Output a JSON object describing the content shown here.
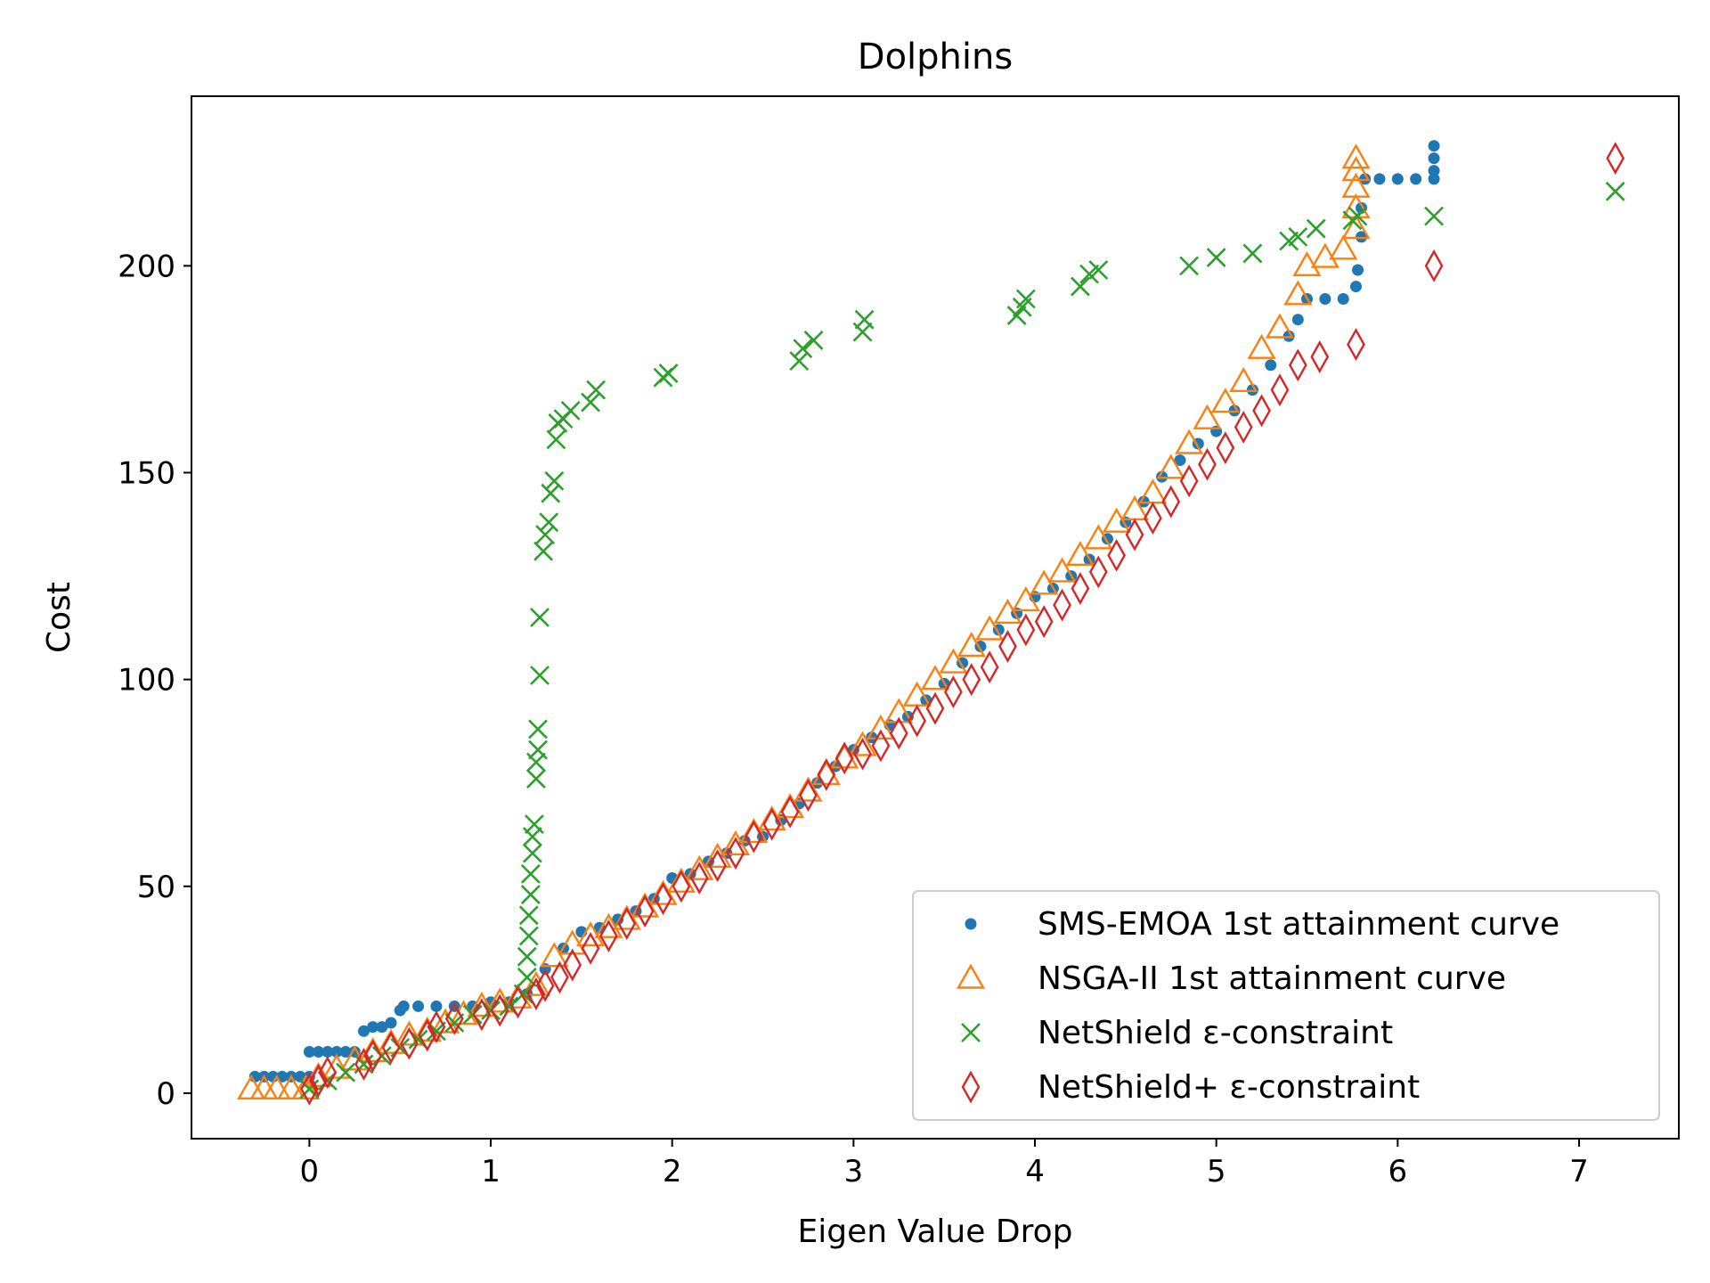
{
  "chart_data": {
    "type": "scatter",
    "title": "Dolphins",
    "xlabel": "Eigen Value Drop",
    "ylabel": "Cost",
    "xlim": [
      -0.65,
      7.55
    ],
    "ylim": [
      -11,
      241
    ],
    "xticks": [
      0,
      1,
      2,
      3,
      4,
      5,
      6,
      7
    ],
    "yticks": [
      0,
      50,
      100,
      150,
      200
    ],
    "grid": false,
    "legend_position": "lower right",
    "series": [
      {
        "name": "SMS-EMOA 1st attainment curve",
        "marker": "dot",
        "color": "#1f77b4",
        "points": [
          [
            -0.3,
            4
          ],
          [
            -0.25,
            4
          ],
          [
            -0.2,
            4
          ],
          [
            -0.15,
            4
          ],
          [
            -0.1,
            4
          ],
          [
            -0.05,
            4
          ],
          [
            0.0,
            4
          ],
          [
            0.0,
            10
          ],
          [
            0.05,
            10
          ],
          [
            0.1,
            10
          ],
          [
            0.15,
            10
          ],
          [
            0.2,
            10
          ],
          [
            0.25,
            10
          ],
          [
            0.3,
            15
          ],
          [
            0.35,
            16
          ],
          [
            0.4,
            16
          ],
          [
            0.45,
            17
          ],
          [
            0.5,
            20
          ],
          [
            0.52,
            21
          ],
          [
            0.6,
            21
          ],
          [
            0.7,
            21
          ],
          [
            0.8,
            21
          ],
          [
            0.9,
            21
          ],
          [
            1.0,
            22
          ],
          [
            1.1,
            22
          ],
          [
            1.2,
            24
          ],
          [
            1.3,
            30
          ],
          [
            1.4,
            35
          ],
          [
            1.5,
            39
          ],
          [
            1.6,
            40
          ],
          [
            1.7,
            42
          ],
          [
            1.8,
            44
          ],
          [
            1.9,
            47
          ],
          [
            2.0,
            52
          ],
          [
            2.1,
            53
          ],
          [
            2.2,
            56
          ],
          [
            2.3,
            58
          ],
          [
            2.4,
            61
          ],
          [
            2.5,
            62
          ],
          [
            2.6,
            66
          ],
          [
            2.7,
            70
          ],
          [
            2.8,
            75
          ],
          [
            2.9,
            79
          ],
          [
            3.0,
            83
          ],
          [
            3.1,
            86
          ],
          [
            3.2,
            89
          ],
          [
            3.3,
            91
          ],
          [
            3.4,
            95
          ],
          [
            3.5,
            99
          ],
          [
            3.6,
            104
          ],
          [
            3.7,
            108
          ],
          [
            3.8,
            112
          ],
          [
            3.9,
            116
          ],
          [
            4.0,
            120
          ],
          [
            4.1,
            122
          ],
          [
            4.2,
            125
          ],
          [
            4.3,
            129
          ],
          [
            4.4,
            134
          ],
          [
            4.5,
            138
          ],
          [
            4.6,
            143
          ],
          [
            4.7,
            149
          ],
          [
            4.8,
            153
          ],
          [
            4.9,
            157
          ],
          [
            5.0,
            160
          ],
          [
            5.1,
            165
          ],
          [
            5.2,
            170
          ],
          [
            5.3,
            176
          ],
          [
            5.4,
            183
          ],
          [
            5.45,
            187
          ],
          [
            5.5,
            192
          ],
          [
            5.6,
            192
          ],
          [
            5.7,
            192
          ],
          [
            5.77,
            195
          ],
          [
            5.78,
            199
          ],
          [
            5.8,
            207
          ],
          [
            5.8,
            214
          ],
          [
            5.82,
            221
          ],
          [
            5.9,
            221
          ],
          [
            6.0,
            221
          ],
          [
            6.1,
            221
          ],
          [
            6.2,
            221
          ],
          [
            6.2,
            223
          ],
          [
            6.2,
            226
          ],
          [
            6.2,
            229
          ]
        ]
      },
      {
        "name": "NSGA-II 1st attainment curve",
        "marker": "triangle",
        "color": "#ff7f0e",
        "points": [
          [
            -0.32,
            1
          ],
          [
            -0.25,
            1
          ],
          [
            -0.18,
            1
          ],
          [
            -0.1,
            1
          ],
          [
            -0.02,
            1
          ],
          [
            0.05,
            4
          ],
          [
            0.15,
            6
          ],
          [
            0.25,
            8
          ],
          [
            0.35,
            10
          ],
          [
            0.45,
            12
          ],
          [
            0.55,
            14
          ],
          [
            0.65,
            15
          ],
          [
            0.75,
            17
          ],
          [
            0.85,
            19
          ],
          [
            0.95,
            21
          ],
          [
            1.05,
            22
          ],
          [
            1.15,
            23
          ],
          [
            1.25,
            26
          ],
          [
            1.35,
            33
          ],
          [
            1.45,
            36
          ],
          [
            1.55,
            38
          ],
          [
            1.65,
            40
          ],
          [
            1.75,
            42
          ],
          [
            1.85,
            45
          ],
          [
            1.95,
            48
          ],
          [
            2.05,
            51
          ],
          [
            2.15,
            54
          ],
          [
            2.25,
            57
          ],
          [
            2.35,
            60
          ],
          [
            2.45,
            63
          ],
          [
            2.55,
            66
          ],
          [
            2.65,
            69
          ],
          [
            2.75,
            73
          ],
          [
            2.85,
            77
          ],
          [
            2.95,
            81
          ],
          [
            3.05,
            84
          ],
          [
            3.15,
            88
          ],
          [
            3.25,
            92
          ],
          [
            3.35,
            96
          ],
          [
            3.45,
            100
          ],
          [
            3.55,
            104
          ],
          [
            3.65,
            108
          ],
          [
            3.75,
            112
          ],
          [
            3.85,
            116
          ],
          [
            3.95,
            119
          ],
          [
            4.05,
            123
          ],
          [
            4.15,
            126
          ],
          [
            4.25,
            130
          ],
          [
            4.35,
            134
          ],
          [
            4.45,
            138
          ],
          [
            4.55,
            141
          ],
          [
            4.65,
            145
          ],
          [
            4.75,
            151
          ],
          [
            4.85,
            157
          ],
          [
            4.95,
            163
          ],
          [
            5.05,
            167
          ],
          [
            5.15,
            172
          ],
          [
            5.25,
            180
          ],
          [
            5.35,
            185
          ],
          [
            5.45,
            193
          ],
          [
            5.5,
            200
          ],
          [
            5.6,
            202
          ],
          [
            5.7,
            204
          ],
          [
            5.77,
            209
          ],
          [
            5.77,
            214
          ],
          [
            5.77,
            219
          ],
          [
            5.77,
            223
          ],
          [
            5.77,
            226
          ]
        ]
      },
      {
        "name": "NetShield ε-constraint",
        "marker": "x",
        "color": "#2ca02c",
        "points": [
          [
            0.0,
            1
          ],
          [
            0.1,
            3
          ],
          [
            0.2,
            5
          ],
          [
            0.3,
            7
          ],
          [
            0.4,
            9
          ],
          [
            0.5,
            11
          ],
          [
            0.6,
            13
          ],
          [
            0.7,
            15
          ],
          [
            0.8,
            17
          ],
          [
            0.9,
            19
          ],
          [
            1.0,
            20
          ],
          [
            1.1,
            21
          ],
          [
            1.18,
            24
          ],
          [
            1.2,
            28
          ],
          [
            1.2,
            33
          ],
          [
            1.21,
            38
          ],
          [
            1.21,
            43
          ],
          [
            1.22,
            48
          ],
          [
            1.22,
            53
          ],
          [
            1.23,
            58
          ],
          [
            1.23,
            62
          ],
          [
            1.24,
            65
          ],
          [
            1.25,
            76
          ],
          [
            1.25,
            80
          ],
          [
            1.26,
            83
          ],
          [
            1.26,
            88
          ],
          [
            1.27,
            101
          ],
          [
            1.27,
            115
          ],
          [
            1.29,
            131
          ],
          [
            1.3,
            135
          ],
          [
            1.32,
            138
          ],
          [
            1.33,
            145
          ],
          [
            1.35,
            148
          ],
          [
            1.36,
            158
          ],
          [
            1.37,
            162
          ],
          [
            1.4,
            163
          ],
          [
            1.44,
            165
          ],
          [
            1.55,
            167
          ],
          [
            1.58,
            170
          ],
          [
            1.95,
            173
          ],
          [
            1.98,
            174
          ],
          [
            2.7,
            177
          ],
          [
            2.72,
            180
          ],
          [
            2.78,
            182
          ],
          [
            3.05,
            184
          ],
          [
            3.06,
            187
          ],
          [
            3.9,
            188
          ],
          [
            3.93,
            190
          ],
          [
            3.95,
            192
          ],
          [
            4.25,
            195
          ],
          [
            4.3,
            198
          ],
          [
            4.35,
            199
          ],
          [
            4.85,
            200
          ],
          [
            5.0,
            202
          ],
          [
            5.2,
            203
          ],
          [
            5.4,
            206
          ],
          [
            5.45,
            207
          ],
          [
            5.55,
            209
          ],
          [
            5.75,
            211
          ],
          [
            5.78,
            212
          ],
          [
            6.2,
            212
          ],
          [
            7.2,
            218
          ]
        ]
      },
      {
        "name": "NetShield+ ε-constraint",
        "marker": "diamond",
        "color": "#d62728",
        "points": [
          [
            0.0,
            1
          ],
          [
            0.05,
            3
          ],
          [
            0.1,
            5
          ],
          [
            0.3,
            7
          ],
          [
            0.35,
            9
          ],
          [
            0.45,
            11
          ],
          [
            0.55,
            12
          ],
          [
            0.65,
            14
          ],
          [
            0.7,
            16
          ],
          [
            0.8,
            18
          ],
          [
            0.95,
            19
          ],
          [
            1.05,
            20
          ],
          [
            1.15,
            22
          ],
          [
            1.25,
            24
          ],
          [
            1.3,
            26
          ],
          [
            1.38,
            28
          ],
          [
            1.45,
            31
          ],
          [
            1.55,
            35
          ],
          [
            1.65,
            38
          ],
          [
            1.75,
            41
          ],
          [
            1.85,
            44
          ],
          [
            1.95,
            47
          ],
          [
            2.05,
            50
          ],
          [
            2.15,
            52
          ],
          [
            2.25,
            55
          ],
          [
            2.35,
            58
          ],
          [
            2.45,
            62
          ],
          [
            2.55,
            65
          ],
          [
            2.65,
            68
          ],
          [
            2.75,
            72
          ],
          [
            2.85,
            77
          ],
          [
            2.95,
            81
          ],
          [
            3.05,
            82
          ],
          [
            3.15,
            84
          ],
          [
            3.25,
            87
          ],
          [
            3.35,
            90
          ],
          [
            3.45,
            93
          ],
          [
            3.55,
            97
          ],
          [
            3.65,
            100
          ],
          [
            3.75,
            103
          ],
          [
            3.85,
            108
          ],
          [
            3.95,
            112
          ],
          [
            4.05,
            114
          ],
          [
            4.15,
            118
          ],
          [
            4.25,
            122
          ],
          [
            4.35,
            126
          ],
          [
            4.45,
            130
          ],
          [
            4.55,
            135
          ],
          [
            4.65,
            139
          ],
          [
            4.75,
            143
          ],
          [
            4.85,
            148
          ],
          [
            4.95,
            152
          ],
          [
            5.05,
            156
          ],
          [
            5.15,
            161
          ],
          [
            5.25,
            165
          ],
          [
            5.35,
            170
          ],
          [
            5.45,
            176
          ],
          [
            5.57,
            178
          ],
          [
            5.77,
            181
          ],
          [
            6.2,
            200
          ],
          [
            7.2,
            226
          ]
        ]
      }
    ]
  }
}
